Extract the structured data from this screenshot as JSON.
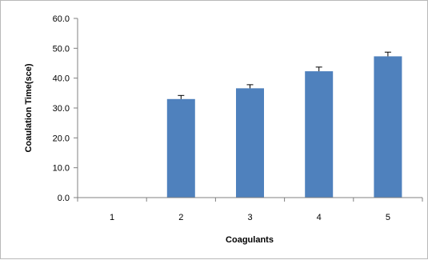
{
  "chart_data": {
    "type": "bar",
    "title": "",
    "xlabel": "Coagulants",
    "ylabel": "Coaulation Time(sce)",
    "categories": [
      "1",
      "2",
      "3",
      "4",
      "5"
    ],
    "values": [
      0,
      33.0,
      36.6,
      42.3,
      47.3
    ],
    "error_bars": [
      0,
      1.2,
      1.2,
      1.4,
      1.4
    ],
    "ylim": [
      0,
      60
    ],
    "y_ticks": [
      "0.0",
      "10.0",
      "20.0",
      "30.0",
      "40.0",
      "50.0",
      "60.0"
    ],
    "grid": false,
    "legend": "none",
    "bar_color": "#4f81bd",
    "axis_color": "#808080"
  }
}
